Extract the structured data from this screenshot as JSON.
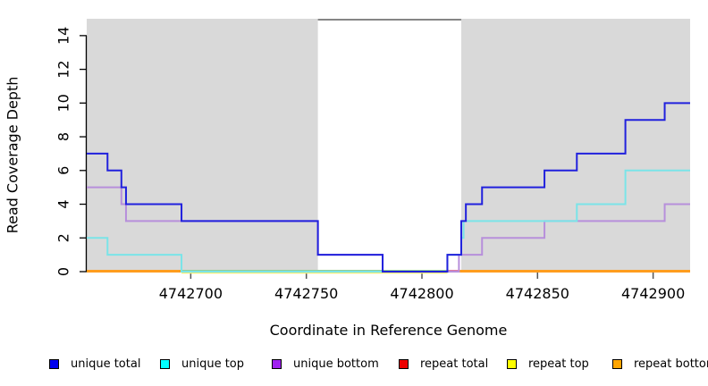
{
  "chart_data": {
    "type": "line",
    "subtype": "step-coverage",
    "title": "",
    "xlabel": "Coordinate in Reference Genome",
    "ylabel": "Read Coverage Depth",
    "x_axis": {
      "range": [
        4742655,
        4742916
      ],
      "ticks": [
        4742700,
        4742750,
        4742800,
        4742850,
        4742900
      ]
    },
    "y_axis": {
      "range": [
        0,
        15
      ],
      "ticks": [
        0,
        2,
        4,
        6,
        8,
        10,
        12,
        14
      ]
    },
    "grid": "off",
    "legend_position": "bottom",
    "plot": {
      "fill": "#d9d9d9",
      "gap_band": {
        "from": 4742755,
        "to": 4742817,
        "fill": "#ffffff",
        "top_border": "#858585"
      }
    },
    "series": [
      {
        "name": "unique total",
        "color": "#2121dd",
        "legend_color": "#0000ee",
        "points": [
          [
            4742655,
            7
          ],
          [
            4742664,
            6
          ],
          [
            4742670,
            5
          ],
          [
            4742672,
            4
          ],
          [
            4742696,
            3
          ],
          [
            4742755,
            1
          ],
          [
            4742783,
            0
          ],
          [
            4742811,
            1
          ],
          [
            4742817,
            3
          ],
          [
            4742819,
            4
          ],
          [
            4742826,
            5
          ],
          [
            4742853,
            6
          ],
          [
            4742867,
            7
          ],
          [
            4742888,
            9
          ],
          [
            4742905,
            10
          ]
        ]
      },
      {
        "name": "unique top",
        "color": "#7ae4e8",
        "legend_color": "#00ffff",
        "points": [
          [
            4742655,
            2
          ],
          [
            4742664,
            1
          ],
          [
            4742696,
            0
          ],
          [
            4742811,
            1
          ],
          [
            4742817,
            2
          ],
          [
            4742818,
            3
          ],
          [
            4742867,
            4
          ],
          [
            4742888,
            6
          ]
        ]
      },
      {
        "name": "unique bottom",
        "color": "#b78fdb",
        "legend_color": "#a020f0",
        "points": [
          [
            4742655,
            5
          ],
          [
            4742670,
            4
          ],
          [
            4742672,
            3
          ],
          [
            4742755,
            1
          ],
          [
            4742783,
            0
          ],
          [
            4742816,
            1
          ],
          [
            4742826,
            2
          ],
          [
            4742853,
            3
          ],
          [
            4742905,
            4
          ]
        ]
      },
      {
        "name": "repeat total",
        "color": "#dd2222",
        "legend_color": "#ee0000",
        "points": [
          [
            4742655,
            0
          ]
        ]
      },
      {
        "name": "repeat top",
        "color": "#eeee55",
        "legend_color": "#ffff00",
        "points": [
          [
            4742655,
            0
          ]
        ]
      },
      {
        "name": "repeat bottom",
        "color": "#ff9d1e",
        "legend_color": "#ffa500",
        "points": [
          [
            4742655,
            0
          ]
        ]
      }
    ],
    "baseline_segments": [
      {
        "from": 4742655,
        "to": 4742696,
        "color": "#ff9d1e"
      },
      {
        "from": 4742696,
        "to": 4742811,
        "color": "#93cd92"
      },
      {
        "from": 4742811,
        "to": 4742816,
        "color": "#e1799f"
      },
      {
        "from": 4742816,
        "to": 4742916,
        "color": "#ff9d1e"
      }
    ],
    "baseline_underline": {
      "from": 4742696,
      "to": 4742811,
      "color": "#efee79"
    }
  },
  "axes": {
    "x_title": "Coordinate in Reference Genome",
    "y_title": "Read Coverage Depth"
  },
  "legend": {
    "items": [
      {
        "label": "unique total",
        "color": "#0000ee"
      },
      {
        "label": "unique top",
        "color": "#00ffff"
      },
      {
        "label": "unique bottom",
        "color": "#a020f0"
      },
      {
        "label": "repeat total",
        "color": "#ee0000"
      },
      {
        "label": "repeat top",
        "color": "#ffff00"
      },
      {
        "label": "repeat bottom",
        "color": "#ffa500"
      }
    ]
  }
}
